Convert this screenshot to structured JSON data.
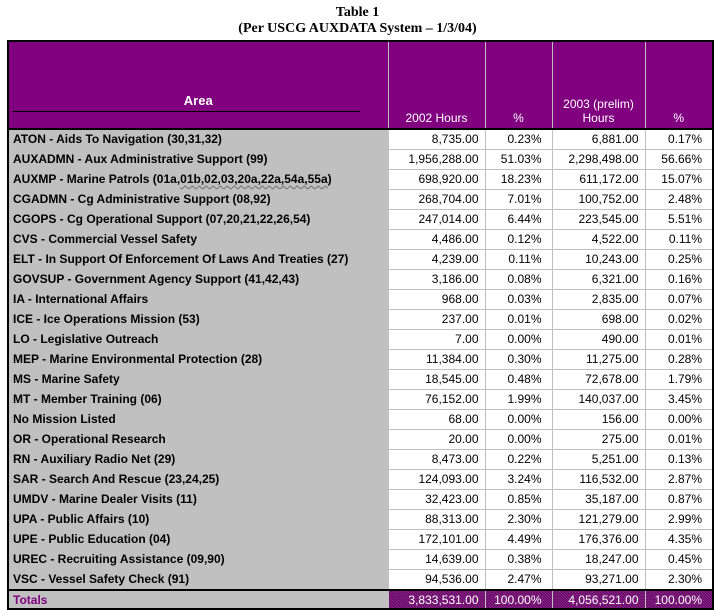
{
  "title": {
    "line1": "Table 1",
    "line2": "(Per USCG AUXDATA System – 1/3/04)"
  },
  "colors": {
    "header_bg": "#800080",
    "header_text": "#ffffff",
    "area_column_bg": "#c0c0c0",
    "grid_line": "#c0c0c0",
    "border": "#000000",
    "totals_label_text": "#800080",
    "totals_cell_bg": "#800080",
    "totals_cell_text": "#ffffff"
  },
  "table": {
    "header": {
      "area": "Area",
      "hours_2002": "2002 Hours",
      "pct_2002": "%",
      "hours_2003_line1": "2003 (prelim)",
      "hours_2003_line2": "Hours",
      "pct_2003": "%"
    },
    "rows": [
      {
        "area": "ATON - Aids To Navigation (30,31,32)",
        "h2002": "8,735.00",
        "p2002": "0.23%",
        "h2003": "6,881.00",
        "p2003": "0.17%"
      },
      {
        "area": "AUXADMN - Aux Administrative Support (99)",
        "h2002": "1,956,288.00",
        "p2002": "51.03%",
        "h2003": "2,298,498.00",
        "p2003": "56.66%"
      },
      {
        "area": "AUXMP - Marine Patrols (01a,01b,02,03,20a,22a,54a,55a)",
        "area_parts": {
          "pre": "AUXMP - Marine Patrols (01a,",
          "wavy": "01b,02,03,20a,22a,54a,55a",
          "post": ")"
        },
        "h2002": "698,920.00",
        "p2002": "18.23%",
        "h2003": "611,172.00",
        "p2003": "15.07%"
      },
      {
        "area": "CGADMN - Cg Administrative Support (08,92)",
        "h2002": "268,704.00",
        "p2002": "7.01%",
        "h2003": "100,752.00",
        "p2003": "2.48%"
      },
      {
        "area": "CGOPS - Cg Operational Support (07,20,21,22,26,54)",
        "h2002": "247,014.00",
        "p2002": "6.44%",
        "h2003": "223,545.00",
        "p2003": "5.51%"
      },
      {
        "area": "CVS - Commercial Vessel Safety",
        "h2002": "4,486.00",
        "p2002": "0.12%",
        "h2003": "4,522.00",
        "p2003": "0.11%"
      },
      {
        "area": "ELT - In Support Of Enforcement Of Laws And Treaties (27)",
        "h2002": "4,239.00",
        "p2002": "0.11%",
        "h2003": "10,243.00",
        "p2003": "0.25%"
      },
      {
        "area": "GOVSUP - Government Agency Support (41,42,43)",
        "h2002": "3,186.00",
        "p2002": "0.08%",
        "h2003": "6,321.00",
        "p2003": "0.16%"
      },
      {
        "area": "IA - International Affairs",
        "h2002": "968.00",
        "p2002": "0.03%",
        "h2003": "2,835.00",
        "p2003": "0.07%"
      },
      {
        "area": "ICE - Ice Operations Mission (53)",
        "h2002": "237.00",
        "p2002": "0.01%",
        "h2003": "698.00",
        "p2003": "0.02%"
      },
      {
        "area": "LO - Legislative Outreach",
        "h2002": "7.00",
        "p2002": "0.00%",
        "h2003": "490.00",
        "p2003": "0.01%"
      },
      {
        "area": "MEP - Marine Environmental Protection (28)",
        "h2002": "11,384.00",
        "p2002": "0.30%",
        "h2003": "11,275.00",
        "p2003": "0.28%"
      },
      {
        "area": "MS - Marine Safety",
        "h2002": "18,545.00",
        "p2002": "0.48%",
        "h2003": "72,678.00",
        "p2003": "1.79%"
      },
      {
        "area": "MT - Member Training (06)",
        "h2002": "76,152.00",
        "p2002": "1.99%",
        "h2003": "140,037.00",
        "p2003": "3.45%"
      },
      {
        "area": "No Mission Listed",
        "h2002": "68.00",
        "p2002": "0.00%",
        "h2003": "156.00",
        "p2003": "0.00%"
      },
      {
        "area": "OR - Operational Research",
        "h2002": "20.00",
        "p2002": "0.00%",
        "h2003": "275.00",
        "p2003": "0.01%"
      },
      {
        "area": "RN - Auxiliary Radio Net (29)",
        "h2002": "8,473.00",
        "p2002": "0.22%",
        "h2003": "5,251.00",
        "p2003": "0.13%"
      },
      {
        "area": "SAR - Search And Rescue (23,24,25)",
        "h2002": "124,093.00",
        "p2002": "3.24%",
        "h2003": "116,532.00",
        "p2003": "2.87%"
      },
      {
        "area": "UMDV - Marine Dealer Visits (11)",
        "h2002": "32,423.00",
        "p2002": "0.85%",
        "h2003": "35,187.00",
        "p2003": "0.87%"
      },
      {
        "area": "UPA - Public Affairs (10)",
        "h2002": "88,313.00",
        "p2002": "2.30%",
        "h2003": "121,279.00",
        "p2003": "2.99%"
      },
      {
        "area": "UPE - Public Education (04)",
        "h2002": "172,101.00",
        "p2002": "4.49%",
        "h2003": "176,376.00",
        "p2003": "4.35%"
      },
      {
        "area": "UREC - Recruiting Assistance (09,90)",
        "h2002": "14,639.00",
        "p2002": "0.38%",
        "h2003": "18,247.00",
        "p2003": "0.45%"
      },
      {
        "area": "VSC - Vessel Safety Check (91)",
        "h2002": "94,536.00",
        "p2002": "2.47%",
        "h2003": "93,271.00",
        "p2003": "2.30%"
      }
    ],
    "totals": {
      "label": "Totals",
      "h2002": "3,833,531.00",
      "p2002": "100.00%",
      "h2003": "4,056,521.00",
      "p2003": "100.00%"
    }
  },
  "chart_data": {
    "type": "table",
    "title": "Table 1 (Per USCG AUXDATA System – 1/3/04)",
    "columns": [
      "Area",
      "2002 Hours",
      "%",
      "2003 (prelim) Hours",
      "%"
    ],
    "rows": [
      [
        "ATON - Aids To Navigation (30,31,32)",
        8735.0,
        "0.23%",
        6881.0,
        "0.17%"
      ],
      [
        "AUXADMN - Aux Administrative Support (99)",
        1956288.0,
        "51.03%",
        2298498.0,
        "56.66%"
      ],
      [
        "AUXMP - Marine Patrols (01a,01b,02,03,20a,22a,54a,55a)",
        698920.0,
        "18.23%",
        611172.0,
        "15.07%"
      ],
      [
        "CGADMN - Cg Administrative Support (08,92)",
        268704.0,
        "7.01%",
        100752.0,
        "2.48%"
      ],
      [
        "CGOPS - Cg Operational Support (07,20,21,22,26,54)",
        247014.0,
        "6.44%",
        223545.0,
        "5.51%"
      ],
      [
        "CVS - Commercial Vessel Safety",
        4486.0,
        "0.12%",
        4522.0,
        "0.11%"
      ],
      [
        "ELT - In Support Of Enforcement Of Laws And Treaties (27)",
        4239.0,
        "0.11%",
        10243.0,
        "0.25%"
      ],
      [
        "GOVSUP - Government Agency Support (41,42,43)",
        3186.0,
        "0.08%",
        6321.0,
        "0.16%"
      ],
      [
        "IA - International Affairs",
        968.0,
        "0.03%",
        2835.0,
        "0.07%"
      ],
      [
        "ICE - Ice Operations Mission (53)",
        237.0,
        "0.01%",
        698.0,
        "0.02%"
      ],
      [
        "LO - Legislative Outreach",
        7.0,
        "0.00%",
        490.0,
        "0.01%"
      ],
      [
        "MEP - Marine Environmental Protection (28)",
        11384.0,
        "0.30%",
        11275.0,
        "0.28%"
      ],
      [
        "MS - Marine Safety",
        18545.0,
        "0.48%",
        72678.0,
        "1.79%"
      ],
      [
        "MT - Member Training (06)",
        76152.0,
        "1.99%",
        140037.0,
        "3.45%"
      ],
      [
        "No Mission Listed",
        68.0,
        "0.00%",
        156.0,
        "0.00%"
      ],
      [
        "OR - Operational Research",
        20.0,
        "0.00%",
        275.0,
        "0.01%"
      ],
      [
        "RN - Auxiliary Radio Net (29)",
        8473.0,
        "0.22%",
        5251.0,
        "0.13%"
      ],
      [
        "SAR - Search And Rescue (23,24,25)",
        124093.0,
        "3.24%",
        116532.0,
        "2.87%"
      ],
      [
        "UMDV - Marine Dealer Visits (11)",
        32423.0,
        "0.85%",
        35187.0,
        "0.87%"
      ],
      [
        "UPA - Public Affairs (10)",
        88313.0,
        "2.30%",
        121279.0,
        "2.99%"
      ],
      [
        "UPE - Public Education (04)",
        172101.0,
        "4.49%",
        176376.0,
        "4.35%"
      ],
      [
        "UREC - Recruiting Assistance (09,90)",
        14639.0,
        "0.38%",
        18247.0,
        "0.45%"
      ],
      [
        "VSC - Vessel Safety Check (91)",
        94536.0,
        "2.47%",
        93271.0,
        "2.30%"
      ],
      [
        "Totals",
        3833531.0,
        "100.00%",
        4056521.0,
        "100.00%"
      ]
    ]
  }
}
